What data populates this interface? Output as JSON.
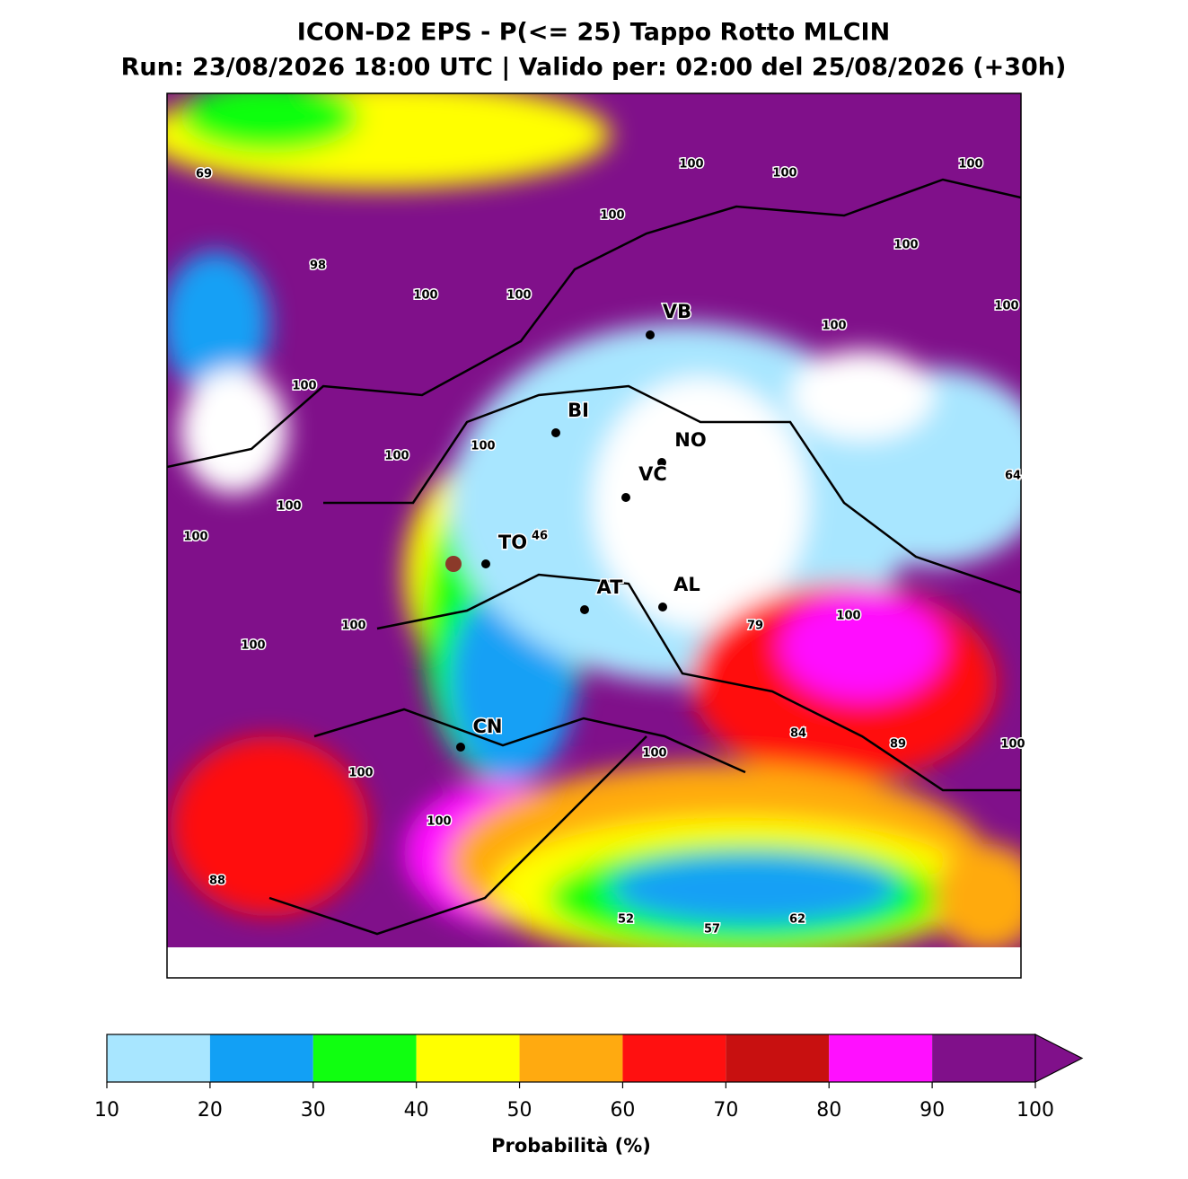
{
  "title": "ICON-D2 EPS - P(<= 25) Tappo Rotto MLCIN",
  "subtitle": "Run: 23/08/2026 18:00 UTC | Valido per: 02:00 del 25/08/2026 (+30h)",
  "cities": [
    "VB",
    "BI",
    "NO",
    "VC",
    "TO",
    "AT",
    "AL",
    "CN"
  ],
  "map_labels": [
    69,
    100,
    100,
    100,
    100,
    100,
    98,
    100,
    100,
    100,
    100,
    100,
    100,
    100,
    64,
    100,
    100,
    46,
    100,
    79,
    100,
    100,
    84,
    89,
    100,
    100,
    100,
    100,
    88,
    52,
    57,
    62
  ],
  "colorbar": {
    "ticks": [
      10,
      20,
      30,
      40,
      50,
      60,
      70,
      80,
      90,
      100
    ],
    "colors": [
      "#a8e6ff",
      "#12a0f5",
      "#10ff10",
      "#ffff00",
      "#ffaa10",
      "#ff1010",
      "#c81010",
      "#ff10ff",
      "#80108a"
    ],
    "label": "Probabilità (%)"
  }
}
